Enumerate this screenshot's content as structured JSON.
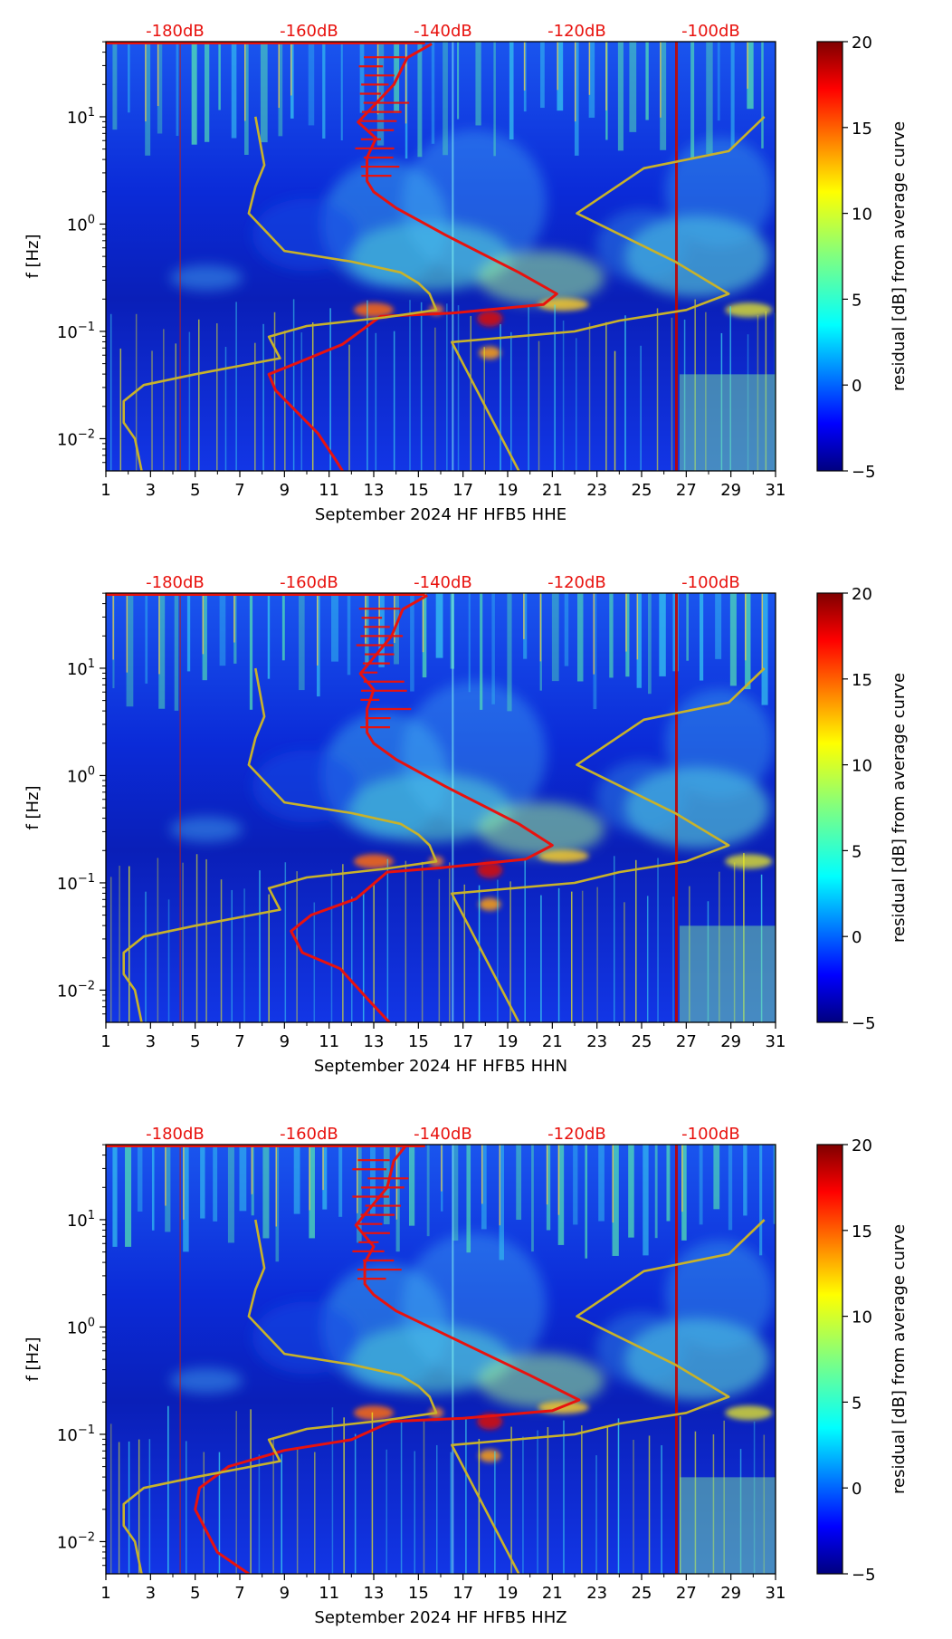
{
  "figure": {
    "colorbar": {
      "label": "residual [dB] from average curve",
      "ticks": [
        "20",
        "15",
        "10",
        "5",
        "0",
        "−5"
      ],
      "range": [
        -5,
        20
      ],
      "colormap": "jet"
    },
    "x_ticks": [
      "1",
      "3",
      "5",
      "7",
      "9",
      "11",
      "13",
      "15",
      "17",
      "19",
      "21",
      "23",
      "25",
      "27",
      "29",
      "31"
    ],
    "y_ticks": [
      {
        "base": "10",
        "exp": "1"
      },
      {
        "base": "10",
        "exp": "0"
      },
      {
        "base": "10",
        "exp": "−1"
      },
      {
        "base": "10",
        "exp": "−2"
      }
    ],
    "top_axis_ticks": [
      "-180dB",
      "-160dB",
      "-140dB",
      "-120dB",
      "-100dB"
    ],
    "y_label": "f [Hz]",
    "colors": {
      "red_curve": "#e8120e",
      "yellow_curve": "#c8b22a",
      "background_low": "#0a2fd6"
    }
  },
  "chart_data": [
    {
      "type": "heatmap",
      "title": "",
      "xlabel": "September 2024 HF HFB5  HHE",
      "ylabel": "f [Hz]",
      "xlim": [
        1,
        31
      ],
      "ylim_log10": [
        -2.3,
        1.7
      ],
      "top_axis": {
        "labels": [
          "-180dB",
          "-160dB",
          "-140dB",
          "-120dB",
          "-100dB"
        ],
        "day_positions": [
          4.1,
          10.1,
          16.1,
          22.1,
          28.1
        ]
      },
      "series": [
        {
          "name": "mean PSD (dB, top axis)",
          "color": "red",
          "points": [
            [
              15.6,
              1.68
            ],
            [
              14.5,
              1.55
            ],
            [
              13.9,
              1.3
            ],
            [
              12.3,
              0.95
            ],
            [
              13.1,
              0.8
            ],
            [
              12.7,
              0.62
            ],
            [
              12.7,
              0.4
            ],
            [
              13.0,
              0.3
            ],
            [
              14.0,
              0.15
            ],
            [
              16.2,
              -0.1
            ],
            [
              19.5,
              -0.45
            ],
            [
              21.2,
              -0.65
            ],
            [
              20.6,
              -0.75
            ],
            [
              16.5,
              -0.83
            ],
            [
              13.3,
              -0.86
            ],
            [
              11.6,
              -1.12
            ],
            [
              9.5,
              -1.3
            ],
            [
              8.3,
              -1.4
            ],
            [
              8.6,
              -1.55
            ],
            [
              10.5,
              -1.95
            ],
            [
              11.3,
              -2.2
            ],
            [
              11.6,
              -2.3
            ]
          ]
        },
        {
          "name": "noise model (dB, top axis)",
          "color": "yellow",
          "points": [
            [
              7.7,
              1.0
            ],
            [
              8.1,
              0.55
            ],
            [
              7.7,
              0.35
            ],
            [
              7.4,
              0.1
            ],
            [
              9.0,
              -0.25
            ],
            [
              12.0,
              -0.35
            ],
            [
              14.2,
              -0.45
            ],
            [
              15.0,
              -0.55
            ],
            [
              15.5,
              -0.65
            ],
            [
              15.8,
              -0.8
            ],
            [
              13.5,
              -0.87
            ],
            [
              10.0,
              -0.95
            ],
            [
              8.3,
              -1.05
            ],
            [
              8.8,
              -1.25
            ],
            [
              5.0,
              -1.4
            ],
            [
              2.7,
              -1.5
            ],
            [
              1.8,
              -1.65
            ],
            [
              1.8,
              -1.85
            ],
            [
              2.3,
              -2.0
            ],
            [
              2.6,
              -2.3
            ]
          ]
        },
        {
          "name": "noise model, right branch (dB, top axis)",
          "color": "yellow",
          "points": [
            [
              30.5,
              1.0
            ],
            [
              28.9,
              0.68
            ],
            [
              25.1,
              0.52
            ],
            [
              22.1,
              0.1
            ],
            [
              26.5,
              -0.35
            ],
            [
              28.9,
              -0.65
            ],
            [
              27.0,
              -0.8
            ],
            [
              24.0,
              -0.9
            ],
            [
              22.0,
              -1.0
            ],
            [
              16.5,
              -1.1
            ],
            [
              19.5,
              -2.3
            ]
          ]
        }
      ]
    },
    {
      "type": "heatmap",
      "title": "",
      "xlabel": "September 2024 HF HFB5  HHN",
      "ylabel": "f [Hz]",
      "xlim": [
        1,
        31
      ],
      "ylim_log10": [
        -2.3,
        1.7
      ],
      "top_axis": {
        "labels": [
          "-180dB",
          "-160dB",
          "-140dB",
          "-120dB",
          "-100dB"
        ],
        "day_positions": [
          4.1,
          10.1,
          16.1,
          22.1,
          28.1
        ]
      },
      "series": [
        {
          "name": "mean PSD (dB, top axis)",
          "color": "red",
          "points": [
            [
              15.4,
              1.68
            ],
            [
              14.3,
              1.55
            ],
            [
              13.8,
              1.3
            ],
            [
              12.4,
              0.95
            ],
            [
              13.0,
              0.8
            ],
            [
              12.7,
              0.62
            ],
            [
              12.7,
              0.4
            ],
            [
              13.0,
              0.3
            ],
            [
              14.0,
              0.15
            ],
            [
              16.2,
              -0.1
            ],
            [
              19.5,
              -0.45
            ],
            [
              21.0,
              -0.65
            ],
            [
              19.8,
              -0.78
            ],
            [
              16.0,
              -0.86
            ],
            [
              13.6,
              -0.9
            ],
            [
              12.2,
              -1.15
            ],
            [
              10.2,
              -1.3
            ],
            [
              9.3,
              -1.45
            ],
            [
              9.8,
              -1.65
            ],
            [
              11.5,
              -1.8
            ],
            [
              12.8,
              -2.1
            ],
            [
              13.7,
              -2.3
            ]
          ]
        },
        {
          "name": "noise model (dB, top axis)",
          "color": "yellow",
          "points": [
            [
              7.7,
              1.0
            ],
            [
              8.1,
              0.55
            ],
            [
              7.7,
              0.35
            ],
            [
              7.4,
              0.1
            ],
            [
              9.0,
              -0.25
            ],
            [
              12.0,
              -0.35
            ],
            [
              14.2,
              -0.45
            ],
            [
              15.0,
              -0.55
            ],
            [
              15.5,
              -0.65
            ],
            [
              15.8,
              -0.8
            ],
            [
              13.5,
              -0.87
            ],
            [
              10.0,
              -0.95
            ],
            [
              8.3,
              -1.05
            ],
            [
              8.8,
              -1.25
            ],
            [
              5.0,
              -1.4
            ],
            [
              2.7,
              -1.5
            ],
            [
              1.8,
              -1.65
            ],
            [
              1.8,
              -1.85
            ],
            [
              2.3,
              -2.0
            ],
            [
              2.6,
              -2.3
            ]
          ]
        },
        {
          "name": "noise model, right branch (dB, top axis)",
          "color": "yellow",
          "points": [
            [
              30.5,
              1.0
            ],
            [
              28.9,
              0.68
            ],
            [
              25.1,
              0.52
            ],
            [
              22.1,
              0.1
            ],
            [
              26.5,
              -0.35
            ],
            [
              28.9,
              -0.65
            ],
            [
              27.0,
              -0.8
            ],
            [
              24.0,
              -0.9
            ],
            [
              22.0,
              -1.0
            ],
            [
              16.5,
              -1.1
            ],
            [
              19.5,
              -2.3
            ]
          ]
        }
      ]
    },
    {
      "type": "heatmap",
      "title": "",
      "xlabel": "September 2024 HF HFB5  HHZ",
      "ylabel": "f [Hz]",
      "xlim": [
        1,
        31
      ],
      "ylim_log10": [
        -2.3,
        1.7
      ],
      "top_axis": {
        "labels": [
          "-180dB",
          "-160dB",
          "-140dB",
          "-120dB",
          "-100dB"
        ],
        "day_positions": [
          4.1,
          10.1,
          16.1,
          22.1,
          28.1
        ]
      },
      "series": [
        {
          "name": "mean PSD (dB, top axis)",
          "color": "red",
          "points": [
            [
              14.4,
              1.68
            ],
            [
              13.9,
              1.55
            ],
            [
              13.6,
              1.3
            ],
            [
              12.2,
              0.95
            ],
            [
              13.0,
              0.75
            ],
            [
              12.6,
              0.6
            ],
            [
              12.6,
              0.4
            ],
            [
              13.0,
              0.3
            ],
            [
              14.0,
              0.15
            ],
            [
              16.5,
              -0.1
            ],
            [
              20.0,
              -0.45
            ],
            [
              22.2,
              -0.68
            ],
            [
              21.0,
              -0.78
            ],
            [
              17.0,
              -0.85
            ],
            [
              13.8,
              -0.88
            ],
            [
              12.0,
              -1.05
            ],
            [
              9.0,
              -1.15
            ],
            [
              6.5,
              -1.3
            ],
            [
              5.2,
              -1.5
            ],
            [
              5.0,
              -1.7
            ],
            [
              6.0,
              -2.1
            ],
            [
              7.4,
              -2.3
            ]
          ]
        },
        {
          "name": "noise model (dB, top axis)",
          "color": "yellow",
          "points": [
            [
              7.7,
              1.0
            ],
            [
              8.1,
              0.55
            ],
            [
              7.7,
              0.35
            ],
            [
              7.4,
              0.1
            ],
            [
              9.0,
              -0.25
            ],
            [
              12.0,
              -0.35
            ],
            [
              14.2,
              -0.45
            ],
            [
              15.0,
              -0.55
            ],
            [
              15.5,
              -0.65
            ],
            [
              15.8,
              -0.8
            ],
            [
              13.5,
              -0.87
            ],
            [
              10.0,
              -0.95
            ],
            [
              8.3,
              -1.05
            ],
            [
              8.8,
              -1.25
            ],
            [
              5.0,
              -1.4
            ],
            [
              2.7,
              -1.5
            ],
            [
              1.8,
              -1.65
            ],
            [
              1.8,
              -1.85
            ],
            [
              2.3,
              -2.0
            ],
            [
              2.6,
              -2.3
            ]
          ]
        },
        {
          "name": "noise model, right branch (dB, top axis)",
          "color": "yellow",
          "points": [
            [
              30.5,
              1.0
            ],
            [
              28.9,
              0.68
            ],
            [
              25.1,
              0.52
            ],
            [
              22.1,
              0.1
            ],
            [
              26.5,
              -0.35
            ],
            [
              28.9,
              -0.65
            ],
            [
              27.0,
              -0.8
            ],
            [
              24.0,
              -0.9
            ],
            [
              22.0,
              -1.0
            ],
            [
              16.5,
              -1.1
            ],
            [
              19.5,
              -2.3
            ]
          ]
        }
      ]
    }
  ]
}
